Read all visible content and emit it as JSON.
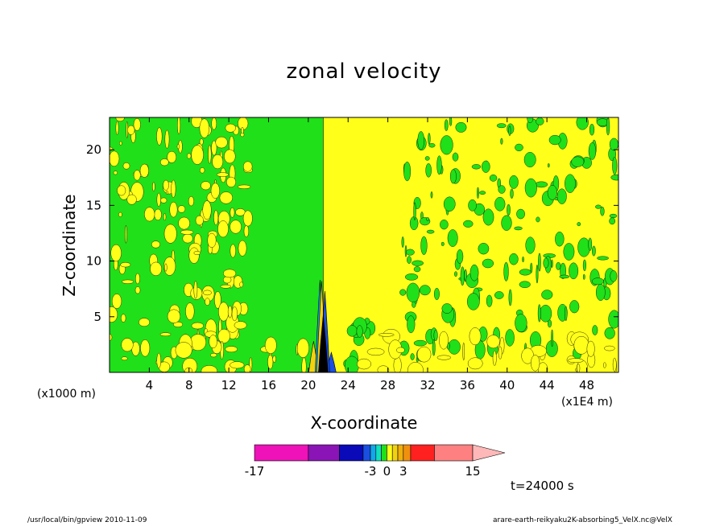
{
  "chart_data": {
    "type": "heatmap",
    "title": "zonal velocity",
    "xlabel": "X-coordinate",
    "ylabel": "Z-coordinate",
    "x_unit_label": "(x1000 m)",
    "x_scale_label": "(x1E4 m)",
    "x_ticks": [
      4,
      8,
      12,
      16,
      20,
      24,
      28,
      32,
      36,
      40,
      44,
      48
    ],
    "y_ticks": [
      5,
      10,
      15,
      20
    ],
    "xlim": [
      0,
      51.2
    ],
    "ylim": [
      0,
      22.9
    ],
    "colorbar": {
      "levels": [
        -17,
        -13,
        -9,
        -5,
        -3,
        -2,
        -1,
        0,
        1,
        2,
        3,
        5,
        9,
        13,
        15
      ],
      "colors": [
        "#ee12b8",
        "#8a14b6",
        "#0a0ab8",
        "#1a4fe0",
        "#10a8e8",
        "#10e0c0",
        "#20e01a",
        "#ffff1a",
        "#f2d20e",
        "#f0b00a",
        "#f0900e",
        "#ff2020",
        "#ff8080",
        "#ffb8b8"
      ],
      "tick_labels": [
        {
          "value": -17,
          "label": "-17"
        },
        {
          "value": -3,
          "label": "-3"
        },
        {
          "value": 0,
          "label": "0"
        },
        {
          "value": 3,
          "label": "3"
        },
        {
          "value": 15,
          "label": "15"
        }
      ]
    },
    "time_label": "t=24000 s",
    "grid": false,
    "legend": "colorbar bottom",
    "footer_left": "/usr/local/bin/gpview 2010-11-09",
    "footer_right": "arare-earth-reikyaku2K-absorbing5_VelX.nc@VelX"
  }
}
